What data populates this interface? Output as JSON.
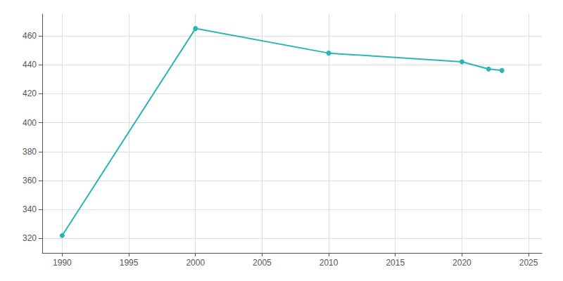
{
  "chart_data": {
    "type": "line",
    "x": [
      1990,
      2000,
      2010,
      2020,
      2022,
      2023
    ],
    "values": [
      322,
      465,
      448,
      442,
      437,
      436
    ],
    "color": "#2ab5b5",
    "marker": "circle",
    "xlim": [
      1988.5,
      2026
    ],
    "ylim": [
      310,
      475
    ],
    "xticks": [
      1990,
      1995,
      2000,
      2005,
      2010,
      2015,
      2020,
      2025
    ],
    "yticks": [
      320,
      340,
      360,
      380,
      400,
      420,
      440,
      460
    ],
    "grid": true
  }
}
